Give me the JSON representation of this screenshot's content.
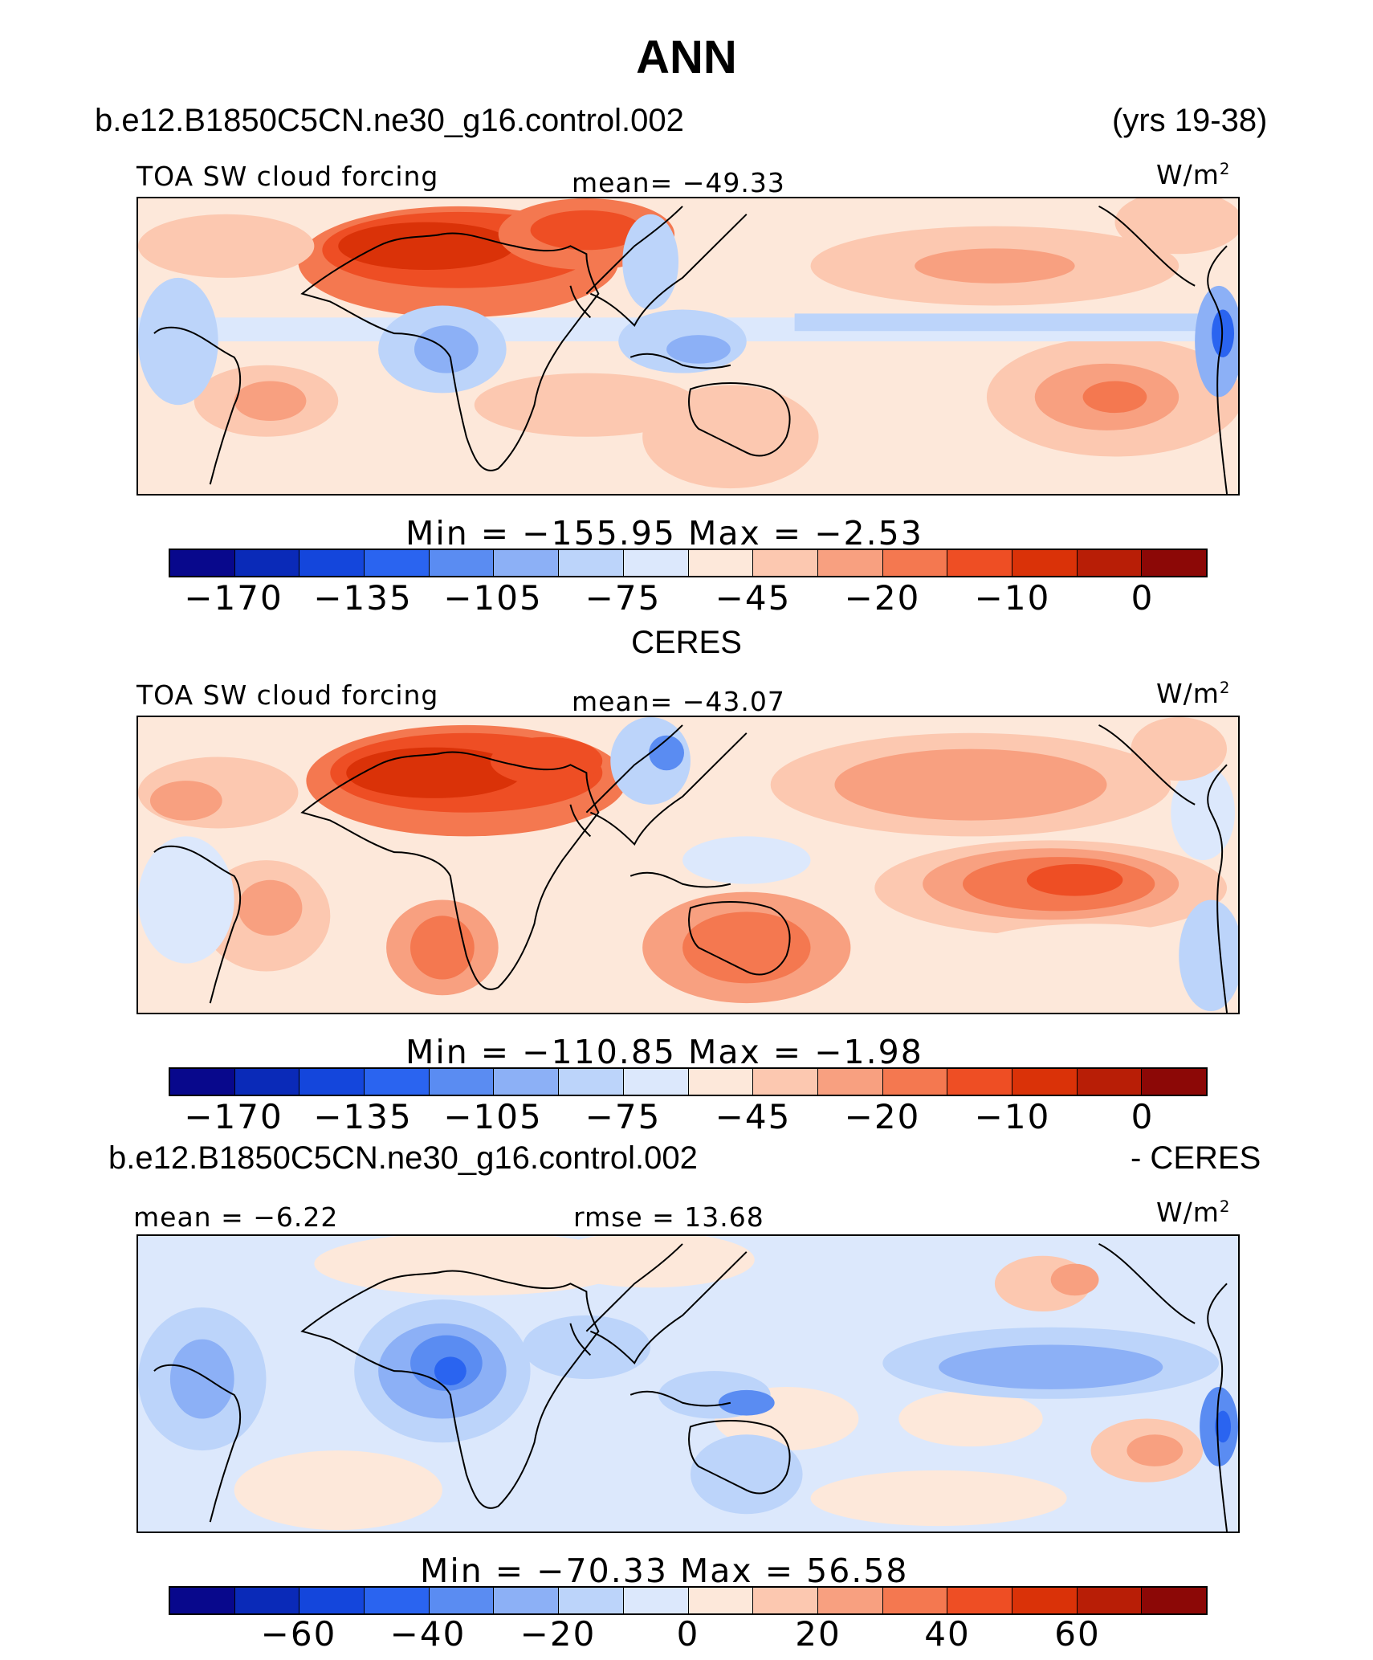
{
  "title": "ANN",
  "case_name": "b.e12.B1850C5CN.ne30_g16.control.002",
  "years": "(yrs 19-38)",
  "obs_name": "CERES",
  "diff_case_name": "b.e12.B1850C5CN.ne30_g16.control.002",
  "diff_suffix": "- CERES",
  "panels": [
    {
      "variable": "TOA SW cloud forcing",
      "stat_left": "mean=  −49.33",
      "units_base": "W/m",
      "units_exp": "2",
      "minmax": "Min  =  −155.95  Max  =    −2.53",
      "tick_labels": [
        "−170",
        "−135",
        "−105",
        "−75",
        "−45",
        "−20",
        "−10",
        "0"
      ]
    },
    {
      "variable": "TOA SW cloud forcing",
      "stat_left": "mean=  −43.07",
      "units_base": "W/m",
      "units_exp": "2",
      "minmax": "Min  =  −110.85  Max  =    −1.98",
      "tick_labels": [
        "−170",
        "−135",
        "−105",
        "−75",
        "−45",
        "−20",
        "−10",
        "0"
      ]
    },
    {
      "stat_left": "mean =   −6.22",
      "stat_mid": "rmse  =   13.68",
      "units_base": "W/m",
      "units_exp": "2",
      "minmax": "Min  =  −70.33  Max  =    56.58",
      "tick_labels": [
        "−60",
        "−40",
        "−20",
        "0",
        "20",
        "40",
        "60"
      ]
    }
  ],
  "colormap": [
    "#08088c",
    "#0a2ab8",
    "#1446dc",
    "#2a64f0",
    "#5a8cf2",
    "#8cb0f6",
    "#bcd4fa",
    "#dce8fc",
    "#fde8da",
    "#fcc8b0",
    "#f8a080",
    "#f47850",
    "#ee4e24",
    "#da3208",
    "#b81e06",
    "#8c0806"
  ],
  "chart_data": [
    {
      "type": "heatmap",
      "title": "b.e12.B1850C5CN.ne30_g16.control.002",
      "subtitle": "TOA SW cloud forcing",
      "units": "W/m2",
      "mean": -49.33,
      "min": -155.95,
      "max": -2.53,
      "levels": [
        -170,
        -135,
        -105,
        -75,
        -45,
        -20,
        -10,
        0
      ]
    },
    {
      "type": "heatmap",
      "title": "CERES",
      "subtitle": "TOA SW cloud forcing",
      "units": "W/m2",
      "mean": -43.07,
      "min": -110.85,
      "max": -1.98,
      "levels": [
        -170,
        -135,
        -105,
        -75,
        -45,
        -20,
        -10,
        0
      ]
    },
    {
      "type": "heatmap",
      "title": "b.e12.B1850C5CN.ne30_g16.control.002 - CERES",
      "units": "W/m2",
      "mean": -6.22,
      "rmse": 13.68,
      "min": -70.33,
      "max": 56.58,
      "levels": [
        -60,
        -40,
        -20,
        0,
        20,
        40,
        60
      ]
    }
  ]
}
